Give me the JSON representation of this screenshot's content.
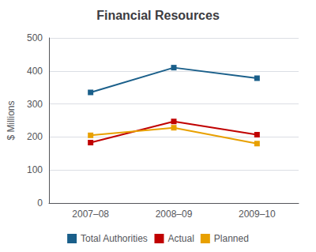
{
  "chart_data": {
    "type": "line",
    "title": "Financial Resources",
    "ylabel": "$ Millions",
    "categories": [
      "2007–08",
      "2008–09",
      "2009–10"
    ],
    "series": [
      {
        "name": "Total Authorities",
        "color": "#1a5f8a",
        "values": [
          335,
          410,
          378
        ],
        "marker": "square"
      },
      {
        "name": "Actual",
        "color": "#c00000",
        "values": [
          183,
          247,
          207
        ],
        "marker": "square"
      },
      {
        "name": "Planned",
        "color": "#e8a000",
        "values": [
          205,
          228,
          180
        ],
        "marker": "square"
      }
    ],
    "ylim": [
      0,
      500
    ],
    "yticks": [
      0,
      100,
      200,
      300,
      400,
      500
    ],
    "grid": true,
    "legend": "bottom"
  }
}
